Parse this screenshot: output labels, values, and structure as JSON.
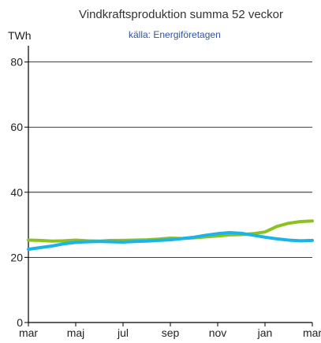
{
  "chart_data": {
    "type": "line",
    "title": "Vindkraftsproduktion summa 52 veckor",
    "subtitle": "källa: Energiföretagen",
    "ylabel": "TWh",
    "xlabel": "",
    "ylim": [
      0,
      85
    ],
    "yticks": [
      0,
      20,
      40,
      60,
      80
    ],
    "ytick_labels": [
      "0",
      "20",
      "40",
      "60",
      "80"
    ],
    "xlim": [
      0,
      12
    ],
    "xticks": [
      0,
      2,
      4,
      6,
      8,
      10,
      12
    ],
    "xtick_labels": [
      "mar",
      "maj",
      "jul",
      "sep",
      "nov",
      "jan",
      "mar"
    ],
    "grid": true,
    "series": [
      {
        "color": "#8cc21f",
        "x": [
          0,
          0.5,
          1,
          1.5,
          2,
          2.5,
          3,
          3.5,
          4,
          4.5,
          5,
          5.5,
          6,
          6.5,
          7,
          7.5,
          8,
          8.5,
          9,
          9.5,
          10,
          10.5,
          11,
          11.5,
          12
        ],
        "values": [
          25.3,
          25.2,
          25.0,
          25.1,
          25.3,
          25.1,
          25.0,
          25.2,
          25.2,
          25.3,
          25.4,
          25.6,
          25.9,
          25.8,
          26.0,
          26.3,
          26.6,
          26.9,
          27.0,
          27.3,
          27.8,
          29.5,
          30.5,
          31.0,
          31.2
        ]
      },
      {
        "color": "#1ab4e8",
        "x": [
          0,
          0.5,
          1,
          1.5,
          2,
          2.5,
          3,
          3.5,
          4,
          4.5,
          5,
          5.5,
          6,
          6.5,
          7,
          7.5,
          8,
          8.5,
          9,
          9.5,
          10,
          10.5,
          11,
          11.5,
          12
        ],
        "values": [
          22.5,
          23.0,
          23.5,
          24.2,
          24.6,
          24.8,
          24.9,
          24.8,
          24.7,
          24.9,
          25.0,
          25.2,
          25.4,
          25.8,
          26.2,
          26.8,
          27.3,
          27.6,
          27.4,
          26.8,
          26.2,
          25.7,
          25.3,
          25.1,
          25.2
        ]
      }
    ]
  },
  "colors": {
    "title": "#333333",
    "source": "#2f5597",
    "axis": "#000000",
    "grid": "#000000"
  }
}
